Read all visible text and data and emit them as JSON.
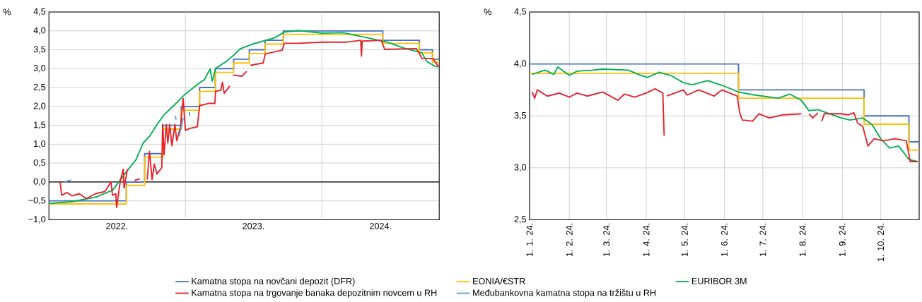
{
  "chart_data": [
    {
      "type": "line",
      "ylabel": "%",
      "xlim": [
        "2022-01-01",
        "2024-11-10"
      ],
      "ylim": [
        -1.0,
        4.5
      ],
      "xticks": [
        {
          "value": "2022-07-02",
          "label": "2022."
        },
        {
          "value": "2023-01-01",
          "label": null
        },
        {
          "value": "2023-07-02",
          "label": "2023."
        },
        {
          "value": "2024-01-01",
          "label": null
        },
        {
          "value": "2024-06-06",
          "label": "2024."
        }
      ],
      "yticks": [
        {
          "value": -1.0,
          "label": "−1,0"
        },
        {
          "value": -0.5,
          "label": "−0,5"
        },
        {
          "value": 0.0,
          "label": "0,0"
        },
        {
          "value": 0.5,
          "label": "0,5"
        },
        {
          "value": 1.0,
          "label": "1,0"
        },
        {
          "value": 1.5,
          "label": "1,5"
        },
        {
          "value": 2.0,
          "label": "2,0"
        },
        {
          "value": 2.5,
          "label": "2,5"
        },
        {
          "value": 3.0,
          "label": "3,0"
        },
        {
          "value": 3.5,
          "label": "3,5"
        },
        {
          "value": 4.0,
          "label": "4,0"
        },
        {
          "value": 4.5,
          "label": "4,5"
        }
      ],
      "grid": true,
      "legend": "bottom",
      "ref_lines": [
        {
          "axis": "y",
          "value": 0,
          "color": "#000000"
        }
      ],
      "series": [
        {
          "name": "Kamatna stopa na novčani depozit (DFR)",
          "type": "step",
          "color": "#4472c4",
          "x": [
            "2022-01-01",
            "2022-07-27",
            "2022-09-14",
            "2022-11-02",
            "2022-12-21",
            "2023-02-08",
            "2023-03-22",
            "2023-05-10",
            "2023-06-21",
            "2023-08-02",
            "2023-09-20",
            "2024-06-12",
            "2024-09-18",
            "2024-10-23",
            "2024-11-10"
          ],
          "values": [
            -0.5,
            0.0,
            0.75,
            1.5,
            2.0,
            2.5,
            3.0,
            3.25,
            3.5,
            3.75,
            4.0,
            3.75,
            3.5,
            3.25,
            3.25
          ]
        },
        {
          "name": "EONIA/€STR",
          "type": "step",
          "color": "#ffc000",
          "x": [
            "2022-01-01",
            "2022-07-27",
            "2022-09-14",
            "2022-11-02",
            "2022-12-21",
            "2023-02-08",
            "2023-03-22",
            "2023-05-10",
            "2023-06-21",
            "2023-08-02",
            "2023-09-20",
            "2024-06-12",
            "2024-09-18",
            "2024-10-23",
            "2024-11-10"
          ],
          "values": [
            -0.58,
            -0.09,
            0.66,
            1.4,
            1.9,
            2.4,
            2.9,
            3.15,
            3.4,
            3.65,
            3.91,
            3.67,
            3.42,
            3.17,
            3.17
          ]
        },
        {
          "name": "EURIBOR 3M",
          "color": "#00b050",
          "x": [
            "2022-01-01",
            "2022-03-04",
            "2022-05-06",
            "2022-06-20",
            "2022-07-09",
            "2022-07-28",
            "2022-08-22",
            "2022-09-10",
            "2022-09-28",
            "2022-10-17",
            "2022-11-05",
            "2022-12-07",
            "2023-01-01",
            "2023-02-02",
            "2023-02-21",
            "2023-03-08",
            "2023-03-14",
            "2023-03-23",
            "2023-04-19",
            "2023-05-13",
            "2023-05-27",
            "2023-06-26",
            "2023-07-28",
            "2023-08-29",
            "2023-09-23",
            "2023-10-31",
            "2024-01-01",
            "2024-02-27",
            "2024-04-30",
            "2024-06-25",
            "2024-08-06",
            "2024-09-24",
            "2024-10-08",
            "2024-10-30",
            "2024-11-08"
          ],
          "values": [
            -0.57,
            -0.52,
            -0.4,
            -0.22,
            0.03,
            0.28,
            0.59,
            1.03,
            1.22,
            1.52,
            1.78,
            2.08,
            2.33,
            2.58,
            2.71,
            2.99,
            2.67,
            3.01,
            3.18,
            3.38,
            3.52,
            3.64,
            3.73,
            3.82,
            3.97,
            4.01,
            3.94,
            3.95,
            3.82,
            3.7,
            3.55,
            3.42,
            3.19,
            3.06,
            3.05
          ]
        },
        {
          "name": "Kamatna stopa na trgovanje banaka depozitnim novcem u RH",
          "color": "#e8202a",
          "x": [
            "2022-01-31",
            "2022-02-04",
            "2022-02-19",
            "2022-03-04",
            "2022-03-23",
            "2022-04-11",
            "2022-05-06",
            "2022-05-31",
            "2022-06-16",
            "2022-06-20",
            "2022-06-29",
            "2022-07-01",
            "2022-07-11",
            "2022-07-19",
            "2022-07-21",
            "2022-07-30",
            "2022-08-10",
            "2022-08-18",
            "2022-09-01",
            "2022-09-10",
            "2022-09-21",
            "2022-09-27",
            "2022-10-04",
            "2022-10-10",
            "2022-10-17",
            "2022-10-30",
            "2022-11-01",
            "2022-11-05",
            "2022-11-11",
            "2022-11-15",
            "2022-11-20",
            "2022-11-26",
            "2022-12-04",
            "2022-12-09",
            "2022-12-19",
            "2022-12-26",
            "2023-01-01",
            "2023-01-14",
            "2023-02-02",
            "2023-02-08",
            "2023-03-04",
            "2023-03-21",
            "2023-03-23",
            "2023-04-06",
            "2023-04-10",
            "2023-04-15",
            "2023-04-30",
            "2023-05-04",
            "2023-05-08",
            "2023-06-01",
            "2023-06-14",
            "2023-06-19",
            "2023-06-24",
            "2023-07-28",
            "2023-08-03",
            "2023-09-17",
            "2023-09-23",
            "2023-10-31",
            "2024-01-01",
            "2024-03-05",
            "2024-04-14",
            "2024-04-16",
            "2024-04-18",
            "2024-06-08",
            "2024-06-17",
            "2024-09-10",
            "2024-09-25",
            "2024-10-24",
            "2024-11-08"
          ],
          "values": [
            0.0,
            -0.35,
            -0.28,
            -0.37,
            -0.31,
            -0.44,
            -0.31,
            -0.25,
            0.0,
            -0.35,
            -0.31,
            -0.68,
            0.03,
            0.34,
            -0.16,
            0.34,
            null,
            0.04,
            0.08,
            null,
            0.06,
            0.81,
            0.06,
            0.47,
            0.21,
            0.38,
            1.52,
            0.72,
            1.52,
            1.03,
            1.52,
            0.96,
            1.52,
            1.09,
            1.46,
            2.21,
            1.37,
            1.42,
            1.46,
            2.02,
            2.08,
            2.08,
            2.4,
            2.43,
            2.64,
            2.35,
            2.54,
            null,
            2.83,
            2.8,
            2.93,
            null,
            3.09,
            3.15,
            3.39,
            3.49,
            3.67,
            3.67,
            3.7,
            3.7,
            3.75,
            3.33,
            3.73,
            3.75,
            3.51,
            3.53,
            3.27,
            3.27,
            3.05
          ]
        },
        {
          "name": "Međubankovna kamatna stopa na tržištu u RH",
          "color": "#5b9bd5",
          "x": [
            "2022-02-12",
            "2022-03-01",
            "2022-03-05",
            "2022-12-05",
            "2022-12-07",
            "2022-12-10",
            "2022-12-15",
            "2022-12-22",
            "2022-12-26",
            "2023-01-03",
            "2023-01-11",
            "2023-01-13"
          ],
          "values": [
            0.0,
            0.05,
            null,
            1.75,
            1.65,
            null,
            1.21,
            1.5,
            1.7,
            null,
            1.85,
            1.75
          ]
        }
      ]
    },
    {
      "type": "line",
      "ylabel": "%",
      "xlim": [
        "2024-01-01",
        "2024-10-31"
      ],
      "ylim": [
        2.5,
        4.5
      ],
      "xticks": [
        {
          "value": "2024-01-01",
          "label": "1. 1. 24."
        },
        {
          "value": "2024-02-01",
          "label": "1. 2. 24."
        },
        {
          "value": "2024-03-01",
          "label": "1. 3. 24."
        },
        {
          "value": "2024-04-01",
          "label": "1. 4. 24."
        },
        {
          "value": "2024-05-01",
          "label": "1. 5. 24."
        },
        {
          "value": "2024-06-01",
          "label": "1. 6. 24."
        },
        {
          "value": "2024-07-01",
          "label": "1. 7. 24."
        },
        {
          "value": "2024-08-01",
          "label": "1. 8. 24."
        },
        {
          "value": "2024-09-01",
          "label": "1. 9. 24."
        },
        {
          "value": "2024-10-01",
          "label": "1. 10. 24."
        }
      ],
      "yticks": [
        {
          "value": 2.5,
          "label": "2,5"
        },
        {
          "value": 3.0,
          "label": "3,0"
        },
        {
          "value": 3.5,
          "label": "3,5"
        },
        {
          "value": 4.0,
          "label": "4,0"
        },
        {
          "value": 4.5,
          "label": "4,5"
        }
      ],
      "grid": true,
      "series": [
        {
          "type": "step",
          "color": "#4472c4",
          "x": [
            "2024-01-01",
            "2024-06-12",
            "2024-09-18",
            "2024-10-23",
            "2024-10-31"
          ],
          "values": [
            4.0,
            3.75,
            3.5,
            3.25,
            3.25
          ]
        },
        {
          "type": "step",
          "color": "#ffc000",
          "x": [
            "2024-01-01",
            "2024-06-12",
            "2024-09-18",
            "2024-10-23",
            "2024-10-31"
          ],
          "values": [
            3.91,
            3.67,
            3.42,
            3.17,
            3.17
          ]
        },
        {
          "color": "#00b050",
          "x": [
            "2024-01-03",
            "2024-01-13",
            "2024-01-20",
            "2024-01-23",
            "2024-02-01",
            "2024-02-07",
            "2024-02-19",
            "2024-02-27",
            "2024-03-18",
            "2024-03-28",
            "2024-04-02",
            "2024-04-11",
            "2024-04-20",
            "2024-04-30",
            "2024-05-07",
            "2024-05-19",
            "2024-05-31",
            "2024-06-12",
            "2024-06-25",
            "2024-07-13",
            "2024-07-22",
            "2024-07-31",
            "2024-08-06",
            "2024-08-13",
            "2024-08-31",
            "2024-09-07",
            "2024-09-17",
            "2024-09-24",
            "2024-10-01",
            "2024-10-08",
            "2024-10-15",
            "2024-10-23",
            "2024-10-30"
          ],
          "values": [
            3.9,
            3.94,
            3.9,
            3.97,
            3.89,
            3.93,
            3.94,
            3.95,
            3.94,
            3.89,
            3.87,
            3.92,
            3.89,
            3.82,
            3.8,
            3.84,
            3.79,
            3.73,
            3.7,
            3.67,
            3.71,
            3.65,
            3.55,
            3.56,
            3.48,
            3.46,
            3.48,
            3.42,
            3.28,
            3.19,
            3.21,
            3.08,
            3.06
          ]
        },
        {
          "color": "#e8202a",
          "x": [
            "2024-01-03",
            "2024-01-05",
            "2024-01-07",
            "2024-01-15",
            "2024-01-24",
            "2024-02-01",
            "2024-02-07",
            "2024-02-15",
            "2024-02-27",
            "2024-03-10",
            "2024-03-15",
            "2024-03-23",
            "2024-04-01",
            "2024-04-08",
            "2024-04-14",
            "2024-04-15",
            "2024-04-16",
            "2024-04-17",
            "2024-04-30",
            "2024-05-03",
            "2024-05-12",
            "2024-05-24",
            "2024-05-30",
            "2024-06-11",
            "2024-06-13",
            "2024-06-15",
            "2024-06-23",
            "2024-06-28",
            "2024-07-06",
            "2024-07-17",
            "2024-07-31",
            "2024-08-03",
            "2024-08-06",
            "2024-08-09",
            "2024-08-13",
            "2024-08-14",
            "2024-08-16",
            "2024-08-18",
            "2024-08-31",
            "2024-09-06",
            "2024-09-10",
            "2024-09-13",
            "2024-09-17",
            "2024-09-21",
            "2024-09-26",
            "2024-10-03",
            "2024-10-12",
            "2024-10-21",
            "2024-10-24",
            "2024-10-30"
          ],
          "values": [
            3.73,
            3.67,
            3.75,
            3.69,
            3.72,
            3.68,
            3.72,
            3.69,
            3.73,
            3.65,
            3.71,
            3.68,
            3.72,
            3.76,
            3.72,
            3.31,
            null,
            3.69,
            3.75,
            3.7,
            3.75,
            3.69,
            3.75,
            3.69,
            3.53,
            3.46,
            3.45,
            3.52,
            3.48,
            3.51,
            3.52,
            null,
            3.52,
            3.48,
            3.53,
            null,
            3.45,
            3.52,
            3.52,
            3.51,
            3.53,
            3.43,
            3.4,
            3.21,
            3.28,
            3.26,
            3.28,
            3.26,
            3.06,
            3.06
          ]
        }
      ]
    }
  ]
}
